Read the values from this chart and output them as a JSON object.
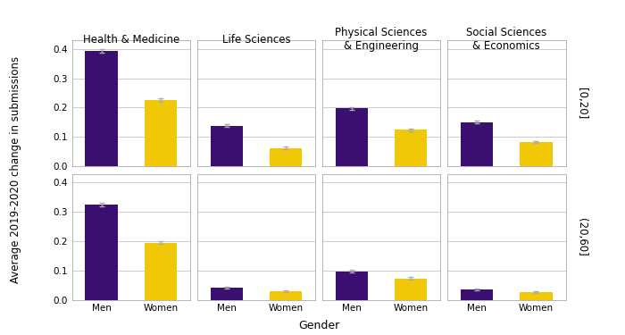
{
  "panels": [
    {
      "col_idx": 0,
      "row_idx": 0,
      "men_val": 0.393,
      "women_val": 0.226,
      "men_err": 0.007,
      "women_err": 0.006
    },
    {
      "col_idx": 1,
      "row_idx": 0,
      "men_val": 0.138,
      "women_val": 0.062,
      "men_err": 0.005,
      "women_err": 0.004
    },
    {
      "col_idx": 2,
      "row_idx": 0,
      "men_val": 0.197,
      "women_val": 0.124,
      "men_err": 0.005,
      "women_err": 0.005
    },
    {
      "col_idx": 3,
      "row_idx": 0,
      "men_val": 0.151,
      "women_val": 0.082,
      "men_err": 0.005,
      "women_err": 0.004
    },
    {
      "col_idx": 0,
      "row_idx": 1,
      "men_val": 0.325,
      "women_val": 0.195,
      "men_err": 0.006,
      "women_err": 0.005
    },
    {
      "col_idx": 1,
      "row_idx": 1,
      "men_val": 0.043,
      "women_val": 0.03,
      "men_err": 0.003,
      "women_err": 0.003
    },
    {
      "col_idx": 2,
      "row_idx": 1,
      "men_val": 0.097,
      "women_val": 0.073,
      "men_err": 0.004,
      "women_err": 0.004
    },
    {
      "col_idx": 3,
      "row_idx": 1,
      "men_val": 0.035,
      "women_val": 0.025,
      "men_err": 0.003,
      "women_err": 0.003
    }
  ],
  "col_labels": [
    "Health & Medicine",
    "Life Sciences",
    "Physical Sciences\n& Engineering",
    "Social Sciences\n& Economics"
  ],
  "row_labels": [
    "[0,20]",
    "(20,60]"
  ],
  "bar_color_men": "#3B0F70",
  "bar_color_women": "#F0C808",
  "error_color": "#AAAAAA",
  "xlabel": "Gender",
  "ylabel": "Average 2019-2020 change in submissions",
  "ylim": [
    0,
    0.43
  ],
  "yticks": [
    0.0,
    0.1,
    0.2,
    0.3,
    0.4
  ],
  "panel_bg": "#FFFFFF",
  "strip_bg": "#D9D9D9",
  "grid_color": "#CCCCCC",
  "bar_width": 0.55,
  "x_positions": [
    0.5,
    1.5
  ],
  "x_lim": [
    0,
    2
  ],
  "x_ticklabels": [
    "Men",
    "Women"
  ],
  "capsize": 2,
  "tick_fontsize": 7.5,
  "label_fontsize": 8.5,
  "strip_fontsize": 8.5
}
